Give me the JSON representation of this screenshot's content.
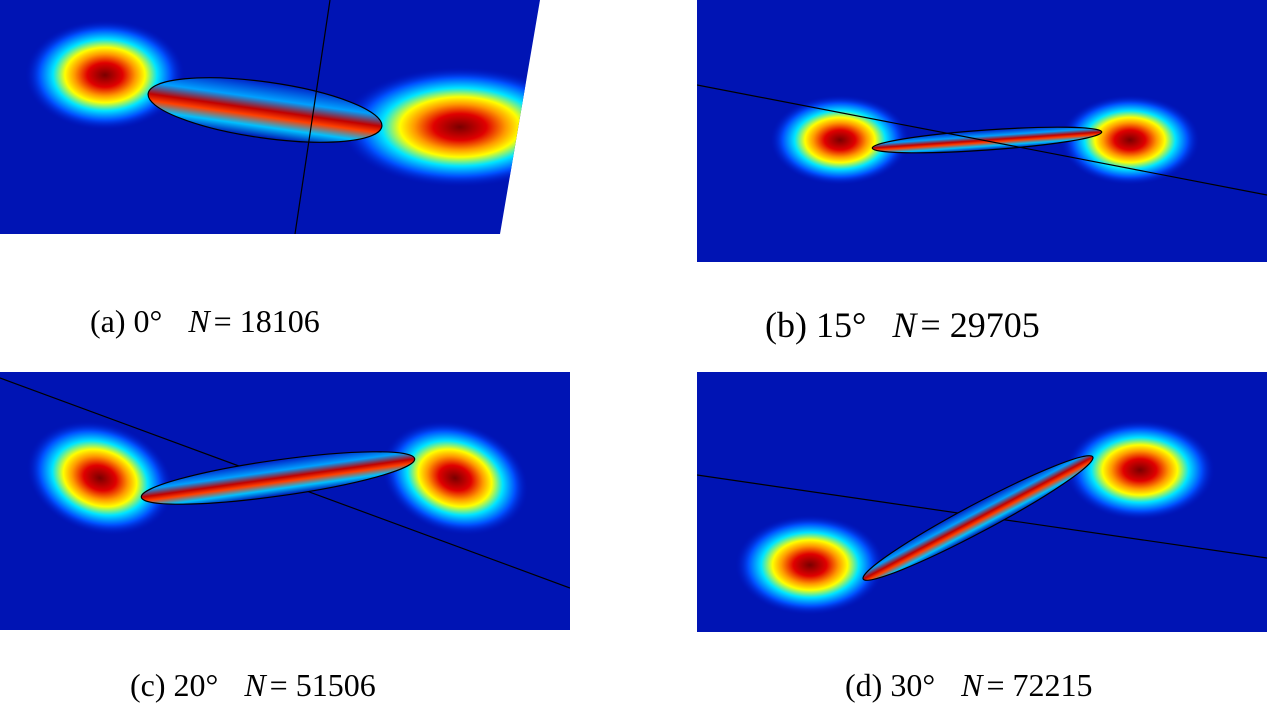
{
  "panels": [
    {
      "label": "(a) 0°",
      "variable": "N",
      "equation": "= 18106"
    },
    {
      "label": "(b) 15°",
      "variable": "N",
      "equation": "= 29705"
    },
    {
      "label": "(c) 20°",
      "variable": "N",
      "equation": "= 51506"
    },
    {
      "label": "(d) 30°",
      "variable": "N",
      "equation": "= 72215"
    }
  ]
}
